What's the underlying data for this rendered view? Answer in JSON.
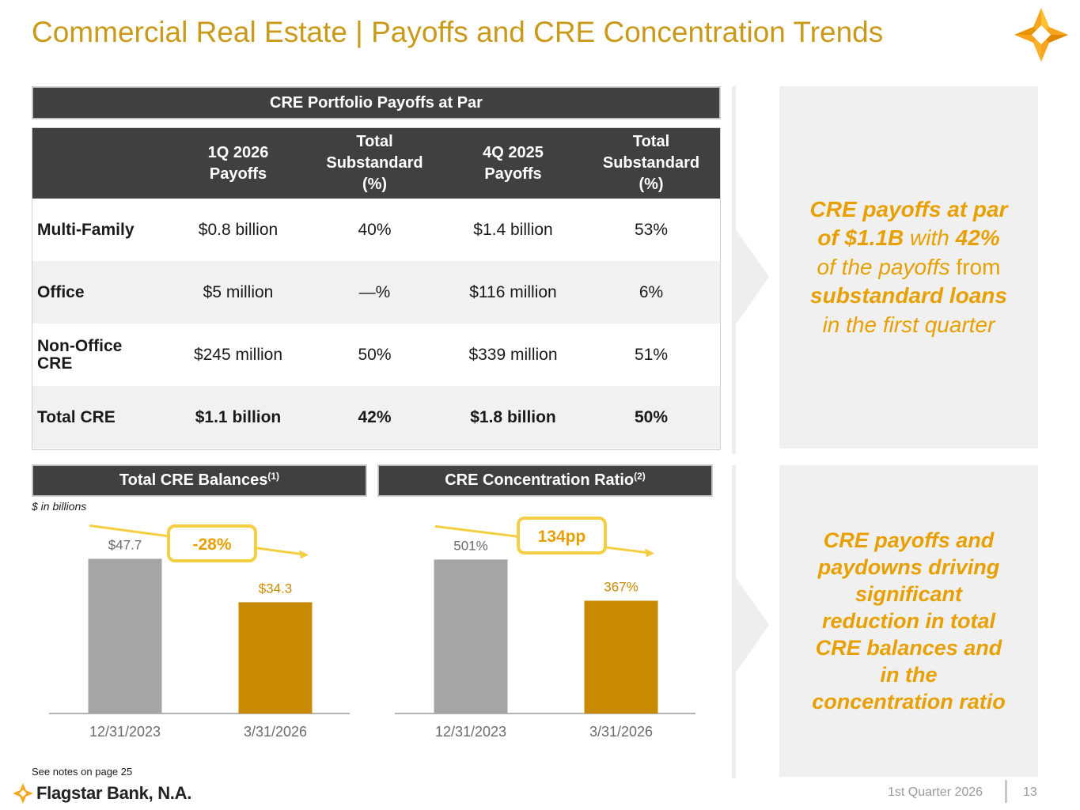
{
  "title": "Commercial Real Estate | Payoffs and CRE Concentration Trends",
  "payoffs_table": {
    "header": "CRE Portfolio Payoffs at Par",
    "columns": [
      {
        "line1": "1Q 2026",
        "line2": "Payoffs",
        "line3": ""
      },
      {
        "line1": "Total",
        "line2": "Substandard",
        "line3": "(%)"
      },
      {
        "line1": "4Q 2025",
        "line2": "Payoffs",
        "line3": ""
      },
      {
        "line1": "Total",
        "line2": "Substandard",
        "line3": "(%)"
      }
    ],
    "rows": [
      {
        "label": "Multi-Family",
        "q1_payoffs": "$0.8 billion",
        "q1_substandard": "40%",
        "q4_payoffs": "$1.4 billion",
        "q4_substandard": "53%"
      },
      {
        "label": "Office",
        "q1_payoffs": "$5 million",
        "q1_substandard": "—%",
        "q4_payoffs": "$116 million",
        "q4_substandard": "6%"
      },
      {
        "label": "Non-Office CRE",
        "q1_payoffs": "$245 million",
        "q1_substandard": "50%",
        "q4_payoffs": "$339 million",
        "q4_substandard": "51%"
      },
      {
        "label": "Total CRE",
        "q1_payoffs": "$1.1 billion",
        "q1_substandard": "42%",
        "q4_payoffs": "$1.8 billion",
        "q4_substandard": "50%"
      }
    ]
  },
  "callout_top": {
    "p1": "CRE payoffs at par of $1.1B",
    "p2": " with ",
    "p3": "42%",
    "p4": " of the payoffs",
    "p5": " from ",
    "p6": "substandard loans",
    "p7": " in the first quarter"
  },
  "callout_bottom": "CRE payoffs and paydowns driving significant reduction in total CRE balances and in the concentration ratio",
  "balances_chart": {
    "header": "Total CRE Balances",
    "header_sup": "(1)",
    "units_note": "$ in billions",
    "change_badge": "-28%"
  },
  "ratio_chart": {
    "header": "CRE Concentration Ratio",
    "header_sup": "(2)",
    "change_badge": "134pp"
  },
  "chart_data": [
    {
      "type": "bar",
      "title": "Total CRE Balances",
      "categories": [
        "12/31/2023",
        "3/31/2026"
      ],
      "values": [
        47.7,
        34.3
      ],
      "labels": [
        "$47.7",
        "$34.3"
      ],
      "ylabel": "$ in billions",
      "ylim": [
        0,
        50
      ],
      "annotation": "-28%",
      "colors": [
        "#a3a5a6",
        "#c88a00"
      ]
    },
    {
      "type": "bar",
      "title": "CRE Concentration Ratio",
      "categories": [
        "12/31/2023",
        "3/31/2026"
      ],
      "values": [
        501,
        367
      ],
      "labels": [
        "501%",
        "367%"
      ],
      "ylabel": "",
      "ylim": [
        0,
        520
      ],
      "annotation": "134pp",
      "colors": [
        "#a3a5a6",
        "#c88a00"
      ]
    }
  ],
  "footer": {
    "notes": "See notes on page 25",
    "brand": "Flagstar Bank, N.A.",
    "quarter": "1st Quarter 2026",
    "page": "13"
  },
  "colors": {
    "title": "#c99a1a",
    "header_bg": "#404040",
    "accent_orange": "#e8a000",
    "bar_gray": "#a3a5a6",
    "bar_gold": "#c88a00",
    "badge_yellow": "#f5cf43"
  }
}
